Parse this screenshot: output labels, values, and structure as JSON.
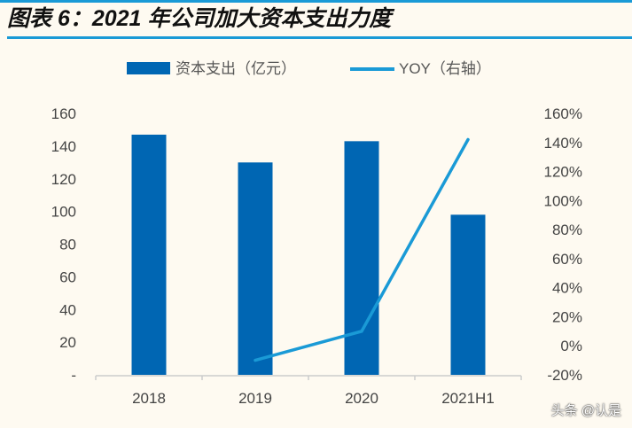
{
  "title": "图表 6：2021 年公司加大资本支出力度",
  "watermark": "头条 @认是",
  "chart_data": {
    "type": "bar",
    "categories": [
      "2018",
      "2019",
      "2020",
      "2021H1"
    ],
    "series": [
      {
        "name": "资本支出（亿元）",
        "type": "bar",
        "axis": "left",
        "color": "#0066b3",
        "values": [
          147,
          130,
          143,
          98
        ]
      },
      {
        "name": "YOY（右轴）",
        "type": "line",
        "axis": "right",
        "color": "#1a9ad6",
        "values": [
          null,
          -10,
          10,
          142
        ]
      }
    ],
    "left_axis": {
      "ylim": [
        0,
        160
      ],
      "ticks": [
        "-",
        "20",
        "40",
        "60",
        "80",
        "100",
        "120",
        "140",
        "160"
      ]
    },
    "right_axis": {
      "ylim": [
        -20,
        160
      ],
      "ticks": [
        "-20%",
        "0%",
        "20%",
        "40%",
        "60%",
        "80%",
        "100%",
        "120%",
        "140%",
        "160%"
      ]
    },
    "legend": "top-center",
    "grid": false
  }
}
